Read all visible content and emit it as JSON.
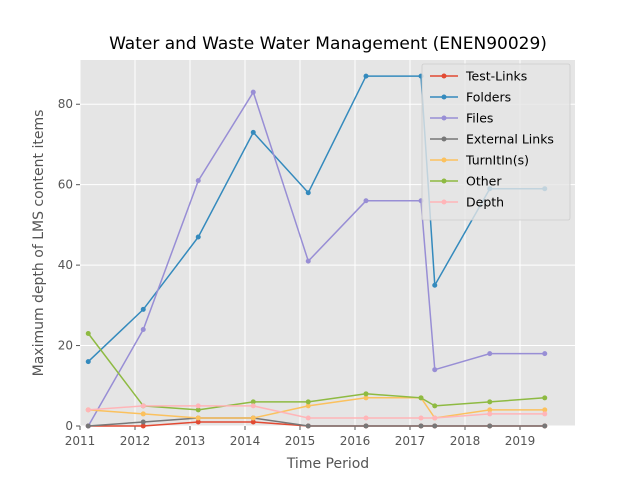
{
  "chart_data": {
    "type": "line",
    "title": "Water and Waste Water Management (ENEN90029)",
    "xlabel": "Time Period",
    "ylabel": "Maximum depth of LMS content items",
    "xlim": [
      2011,
      2020
    ],
    "ylim": [
      0,
      91
    ],
    "xticks": [
      2011,
      2012,
      2013,
      2014,
      2015,
      2016,
      2017,
      2018,
      2019
    ],
    "yticks": [
      0,
      20,
      40,
      60,
      80
    ],
    "grid": true,
    "legend_position": "top-right",
    "x": [
      2011.15,
      2012.15,
      2013.15,
      2014.15,
      2015.15,
      2016.2,
      2017.2,
      2017.45,
      2018.45,
      2019.45
    ],
    "series": [
      {
        "name": "Test-Links",
        "color": "#E24A33",
        "values": [
          0,
          0,
          1,
          1,
          0,
          0,
          0,
          0,
          0,
          0
        ]
      },
      {
        "name": "Folders",
        "color": "#348ABD",
        "values": [
          16,
          29,
          47,
          73,
          58,
          87,
          87,
          35,
          59,
          59
        ]
      },
      {
        "name": "Files",
        "color": "#988ED5",
        "values": [
          0,
          24,
          61,
          83,
          41,
          56,
          56,
          14,
          18,
          18
        ]
      },
      {
        "name": "External Links",
        "color": "#777777",
        "values": [
          0,
          1,
          2,
          2,
          0,
          0,
          0,
          0,
          0,
          0
        ]
      },
      {
        "name": "TurnItIn(s)",
        "color": "#FBC15E",
        "values": [
          4,
          3,
          2,
          2,
          5,
          7,
          7,
          2,
          4,
          4
        ]
      },
      {
        "name": "Other",
        "color": "#8EBA42",
        "values": [
          23,
          5,
          4,
          6,
          6,
          8,
          7,
          5,
          6,
          7
        ]
      },
      {
        "name": "Depth",
        "color": "#FFB5B8",
        "values": [
          4,
          5,
          5,
          5,
          2,
          2,
          2,
          2,
          3,
          3
        ]
      }
    ]
  }
}
